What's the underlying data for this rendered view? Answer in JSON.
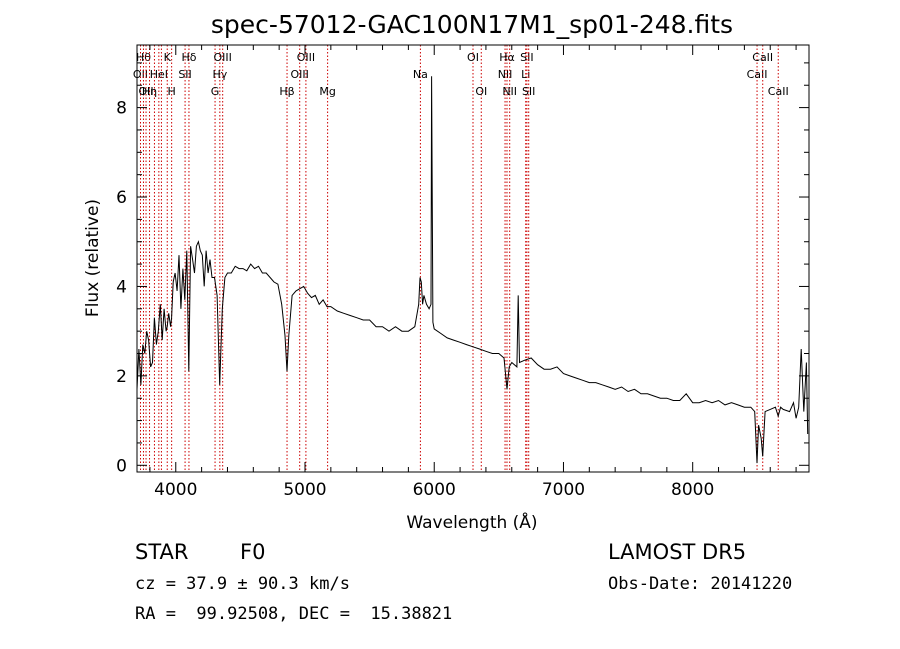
{
  "chart_data": {
    "type": "line",
    "title": "spec-57012-GAC100N17M1_sp01-248.fits",
    "xlabel": "Wavelength (Å)",
    "ylabel": "Flux (relative)",
    "xlim": [
      3700,
      8900
    ],
    "ylim": [
      -0.15,
      9.4
    ],
    "xticks": [
      4000,
      5000,
      6000,
      7000,
      8000
    ],
    "yticks": [
      0,
      2,
      4,
      6,
      8
    ],
    "grid": false,
    "colors": {
      "spectrum": "#000000",
      "line_marker": "#cc0000"
    },
    "series": [
      {
        "x": [
          3700,
          3715,
          3730,
          3745,
          3760,
          3775,
          3790,
          3805,
          3820,
          3835,
          3850,
          3865,
          3880,
          3895,
          3910,
          3925,
          3934,
          3945,
          3960,
          3968,
          3980,
          3995,
          4010,
          4025,
          4040,
          4055,
          4070,
          4085,
          4101,
          4115,
          4130,
          4145,
          4160,
          4175,
          4190,
          4205,
          4220,
          4235,
          4250,
          4265,
          4280,
          4300,
          4320,
          4340,
          4360,
          4380,
          4400,
          4430,
          4460,
          4490,
          4520,
          4550,
          4580,
          4610,
          4640,
          4670,
          4700,
          4730,
          4760,
          4790,
          4820,
          4845,
          4861,
          4875,
          4900,
          4930,
          4960,
          4990,
          5020,
          5050,
          5080,
          5110,
          5140,
          5170,
          5200,
          5250,
          5300,
          5350,
          5400,
          5450,
          5500,
          5550,
          5600,
          5650,
          5700,
          5750,
          5800,
          5850,
          5880,
          5890,
          5900,
          5910,
          5920,
          5930,
          5940,
          5960,
          5975,
          5980,
          5990,
          6000,
          6050,
          6100,
          6150,
          6200,
          6250,
          6300,
          6350,
          6400,
          6450,
          6500,
          6540,
          6563,
          6580,
          6600,
          6640,
          6650,
          6660,
          6700,
          6750,
          6800,
          6850,
          6900,
          6950,
          7000,
          7050,
          7100,
          7150,
          7200,
          7250,
          7300,
          7350,
          7400,
          7450,
          7500,
          7550,
          7600,
          7650,
          7700,
          7750,
          7800,
          7850,
          7900,
          7950,
          8000,
          8050,
          8100,
          8150,
          8200,
          8250,
          8300,
          8350,
          8400,
          8450,
          8480,
          8498,
          8510,
          8530,
          8542,
          8560,
          8600,
          8640,
          8662,
          8680,
          8700,
          8750,
          8780,
          8800,
          8820,
          8840,
          8860,
          8880,
          8890
        ],
        "y": [
          1.7,
          2.6,
          1.8,
          2.7,
          2.5,
          3.0,
          2.8,
          2.2,
          2.3,
          3.3,
          2.7,
          3.0,
          3.6,
          2.8,
          3.5,
          3.0,
          3.1,
          3.4,
          3.1,
          3.3,
          4.1,
          4.3,
          3.9,
          4.7,
          3.5,
          4.4,
          3.7,
          4.8,
          2.1,
          4.9,
          4.6,
          4.3,
          4.9,
          5.0,
          4.8,
          4.7,
          4.0,
          4.8,
          4.3,
          4.6,
          4.2,
          4.2,
          3.8,
          1.8,
          3.5,
          4.2,
          4.3,
          4.3,
          4.45,
          4.4,
          4.4,
          4.35,
          4.5,
          4.4,
          4.45,
          4.3,
          4.3,
          4.2,
          4.1,
          4.05,
          3.6,
          2.9,
          2.1,
          2.9,
          3.8,
          3.9,
          3.95,
          4.0,
          3.85,
          3.75,
          3.8,
          3.6,
          3.7,
          3.55,
          3.55,
          3.45,
          3.4,
          3.35,
          3.3,
          3.25,
          3.25,
          3.1,
          3.1,
          3.0,
          3.1,
          3.0,
          3.0,
          3.1,
          3.6,
          4.2,
          4.1,
          3.6,
          3.8,
          3.7,
          3.6,
          3.5,
          3.6,
          8.7,
          3.2,
          3.05,
          2.95,
          2.85,
          2.8,
          2.75,
          2.7,
          2.65,
          2.6,
          2.55,
          2.5,
          2.5,
          2.4,
          1.7,
          2.2,
          2.3,
          2.2,
          3.8,
          2.3,
          2.35,
          2.4,
          2.25,
          2.15,
          2.15,
          2.2,
          2.05,
          2.0,
          1.95,
          1.9,
          1.85,
          1.85,
          1.8,
          1.75,
          1.7,
          1.75,
          1.65,
          1.7,
          1.6,
          1.6,
          1.55,
          1.5,
          1.5,
          1.45,
          1.45,
          1.6,
          1.4,
          1.4,
          1.45,
          1.4,
          1.45,
          1.35,
          1.4,
          1.35,
          1.3,
          1.3,
          1.2,
          0.05,
          0.9,
          0.6,
          0.2,
          1.2,
          1.25,
          1.3,
          1.1,
          1.3,
          1.25,
          1.2,
          1.4,
          1.05,
          1.3,
          2.6,
          1.2,
          2.3,
          0.7
        ]
      }
    ],
    "line_markers": [
      {
        "x": 3727,
        "label": "OII",
        "row": 1
      },
      {
        "x": 3750,
        "label": "Hθ",
        "row": 0
      },
      {
        "x": 3770,
        "label": "OII",
        "row": 2
      },
      {
        "x": 3797,
        "label": "Hη",
        "row": 2
      },
      {
        "x": 3835,
        "label": "",
        "row": 0
      },
      {
        "x": 3869,
        "label": "HeI",
        "row": 1
      },
      {
        "x": 3889,
        "label": "",
        "row": 0
      },
      {
        "x": 3934,
        "label": "K",
        "row": 0
      },
      {
        "x": 3968,
        "label": "H",
        "row": 2
      },
      {
        "x": 4072,
        "label": "SII",
        "row": 1
      },
      {
        "x": 4102,
        "label": "Hδ",
        "row": 0
      },
      {
        "x": 4304,
        "label": "G",
        "row": 2
      },
      {
        "x": 4341,
        "label": "Hγ",
        "row": 1
      },
      {
        "x": 4363,
        "label": "OIII",
        "row": 0
      },
      {
        "x": 4861,
        "label": "Hβ",
        "row": 2
      },
      {
        "x": 4959,
        "label": "OIII",
        "row": 1
      },
      {
        "x": 5007,
        "label": "OIII",
        "row": 0
      },
      {
        "x": 5175,
        "label": "Mg",
        "row": 2
      },
      {
        "x": 5893,
        "label": "Na",
        "row": 1
      },
      {
        "x": 6300,
        "label": "OI",
        "row": 0
      },
      {
        "x": 6364,
        "label": "OI",
        "row": 2
      },
      {
        "x": 6548,
        "label": "NII",
        "row": 1
      },
      {
        "x": 6563,
        "label": "Hα",
        "row": 0
      },
      {
        "x": 6584,
        "label": "NII",
        "row": 2
      },
      {
        "x": 6708,
        "label": "Li",
        "row": 1
      },
      {
        "x": 6717,
        "label": "SII",
        "row": 0
      },
      {
        "x": 6731,
        "label": "SII",
        "row": 2
      },
      {
        "x": 8498,
        "label": "CaII",
        "row": 1
      },
      {
        "x": 8542,
        "label": "CaII",
        "row": 0
      },
      {
        "x": 8662,
        "label": "CaII",
        "row": 2
      }
    ]
  },
  "info": {
    "class_label": "STAR",
    "subclass_label": "F0",
    "survey_label": "LAMOST DR5",
    "cz_text": "cz = 37.9 ± 90.3 km/s",
    "obs_date_text": "Obs-Date: 20141220",
    "coords_text": "RA =  99.92508, DEC =  15.38821"
  }
}
